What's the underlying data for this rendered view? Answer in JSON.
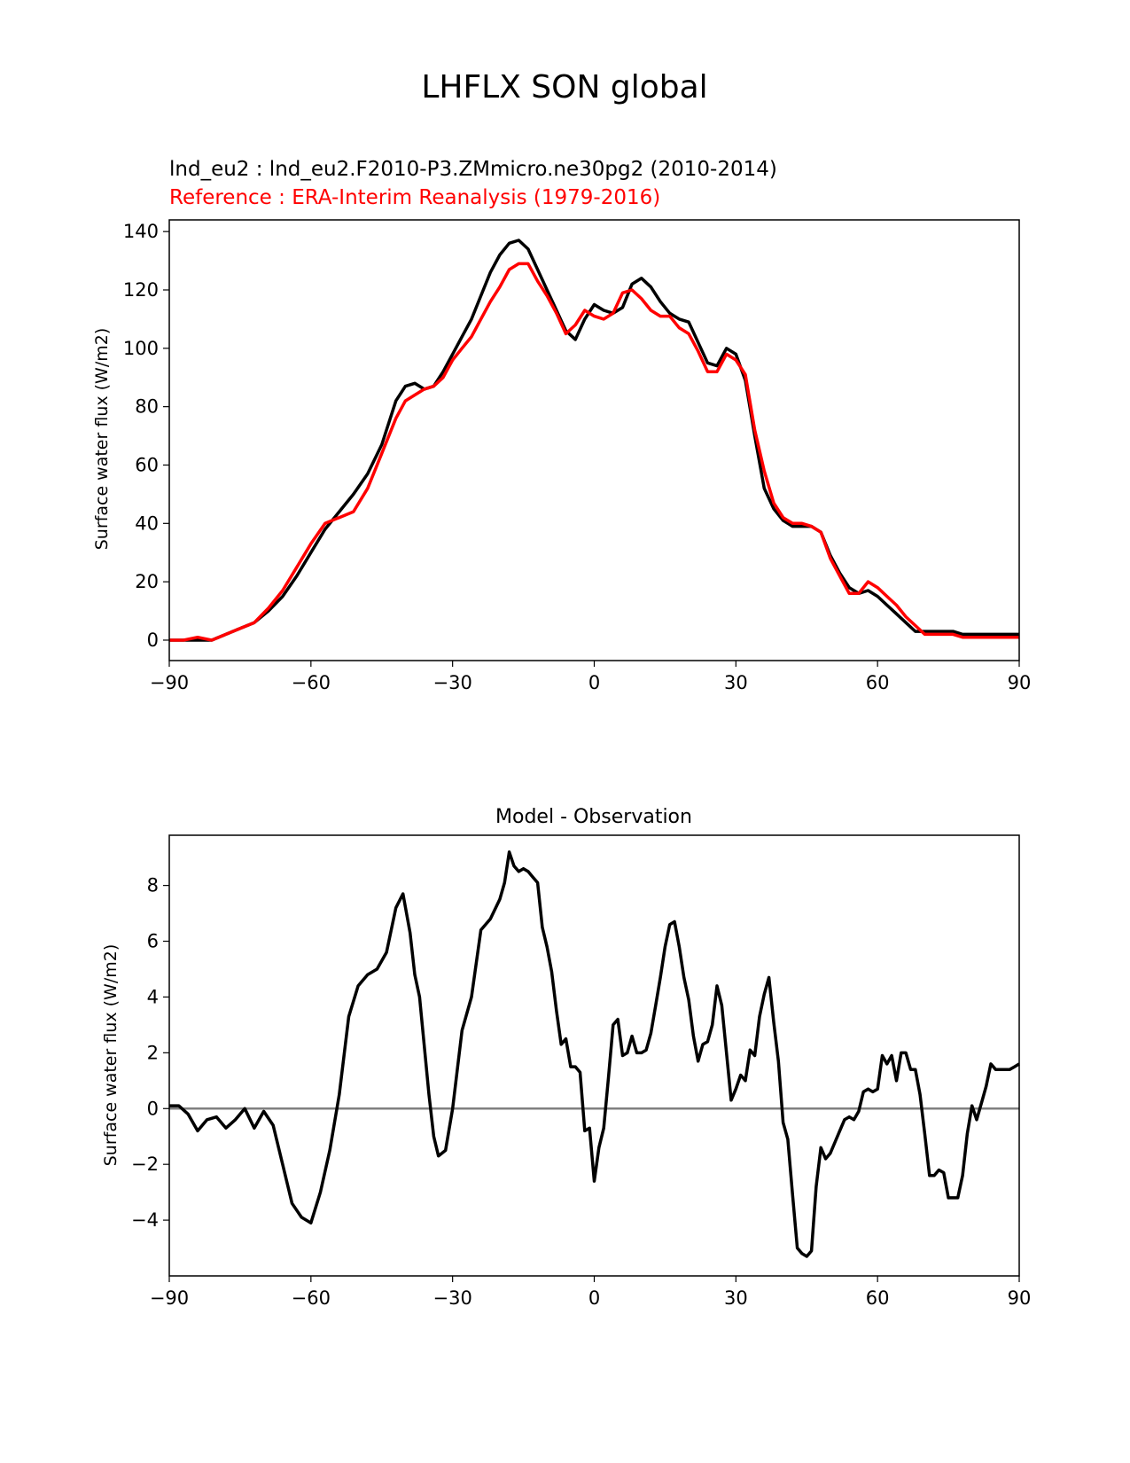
{
  "page_title": "LHFLX SON global",
  "chart_data": [
    {
      "type": "line",
      "test_label": "lnd_eu2 : lnd_eu2.F2010-P3.ZMmicro.ne30pg2 (2010-2014)",
      "ref_label": "Reference : ERA-Interim Reanalysis (1979-2016)",
      "title": "",
      "xlabel": "",
      "ylabel": "Surface water flux (W/m2)",
      "xlim": [
        -90,
        90
      ],
      "ylim": [
        -7,
        144
      ],
      "xticks": [
        -90,
        -60,
        -30,
        0,
        30,
        60,
        90
      ],
      "xtick_labels": [
        "−90",
        "−60",
        "−30",
        "0",
        "30",
        "60",
        "90"
      ],
      "yticks": [
        0,
        20,
        40,
        60,
        80,
        100,
        120,
        140
      ],
      "ytick_labels": [
        "0",
        "20",
        "40",
        "60",
        "80",
        "100",
        "120",
        "140"
      ],
      "series": [
        {
          "name": "test",
          "color": "#000000",
          "x": [
            -90,
            -87,
            -84,
            -81,
            -78,
            -75,
            -72,
            -69,
            -66,
            -63,
            -60,
            -57,
            -54,
            -51,
            -48,
            -45,
            -42,
            -40,
            -38,
            -36,
            -34,
            -32,
            -30,
            -28,
            -26,
            -24,
            -22,
            -20,
            -18,
            -16,
            -14,
            -12,
            -10,
            -8,
            -6,
            -4,
            -2,
            0,
            2,
            4,
            6,
            8,
            10,
            12,
            14,
            16,
            18,
            20,
            22,
            24,
            26,
            28,
            30,
            32,
            34,
            36,
            38,
            40,
            42,
            44,
            46,
            48,
            50,
            52,
            54,
            56,
            58,
            60,
            62,
            64,
            66,
            68,
            70,
            72,
            74,
            76,
            78,
            80,
            82,
            84,
            86,
            88,
            90
          ],
          "y": [
            0,
            0,
            0,
            0,
            2,
            4,
            6,
            10,
            15,
            22,
            30,
            38,
            44,
            50,
            57,
            67,
            82,
            87,
            88,
            86,
            87,
            92,
            98,
            104,
            110,
            118,
            126,
            132,
            136,
            137,
            134,
            127,
            120,
            113,
            106,
            103,
            110,
            115,
            113,
            112,
            114,
            122,
            124,
            121,
            116,
            112,
            110,
            109,
            102,
            95,
            94,
            100,
            98,
            89,
            70,
            52,
            45,
            41,
            39,
            39,
            39,
            37,
            29,
            23,
            18,
            16,
            17,
            15,
            12,
            9,
            6,
            3,
            3,
            3,
            3,
            3,
            2,
            2,
            2,
            2,
            2,
            2,
            2
          ]
        },
        {
          "name": "reference",
          "color": "#ff0000",
          "x": [
            -90,
            -87,
            -84,
            -81,
            -78,
            -75,
            -72,
            -69,
            -66,
            -63,
            -60,
            -57,
            -54,
            -51,
            -48,
            -45,
            -42,
            -40,
            -38,
            -36,
            -34,
            -32,
            -30,
            -28,
            -26,
            -24,
            -22,
            -20,
            -18,
            -16,
            -14,
            -12,
            -10,
            -8,
            -6,
            -4,
            -2,
            0,
            2,
            4,
            6,
            8,
            10,
            12,
            14,
            16,
            18,
            20,
            22,
            24,
            26,
            28,
            30,
            32,
            34,
            36,
            38,
            40,
            42,
            44,
            46,
            48,
            50,
            52,
            54,
            56,
            58,
            60,
            62,
            64,
            66,
            68,
            70,
            72,
            74,
            76,
            78,
            80,
            82,
            84,
            86,
            88,
            90
          ],
          "y": [
            0,
            0,
            1,
            0,
            2,
            4,
            6,
            11,
            17,
            25,
            33,
            40,
            42,
            44,
            52,
            64,
            76,
            82,
            84,
            86,
            87,
            90,
            96,
            100,
            104,
            110,
            116,
            121,
            127,
            129,
            129,
            123,
            118,
            112,
            105,
            108,
            113,
            111,
            110,
            112,
            119,
            120,
            117,
            113,
            111,
            111,
            107,
            105,
            99,
            92,
            92,
            98,
            96,
            91,
            72,
            58,
            47,
            42,
            40,
            40,
            39,
            37,
            28,
            22,
            16,
            16,
            20,
            18,
            15,
            12,
            8,
            5,
            2,
            2,
            2,
            2,
            1,
            1,
            1,
            1,
            1,
            1,
            1
          ]
        }
      ]
    },
    {
      "type": "line",
      "title": "Model - Observation",
      "xlabel": "",
      "ylabel": "Surface water flux (W/m2)",
      "xlim": [
        -90,
        90
      ],
      "ylim": [
        -6,
        9.8
      ],
      "xticks": [
        -90,
        -60,
        -30,
        0,
        30,
        60,
        90
      ],
      "xtick_labels": [
        "−90",
        "−60",
        "−30",
        "0",
        "30",
        "60",
        "90"
      ],
      "yticks": [
        -4,
        -2,
        0,
        2,
        4,
        6,
        8
      ],
      "ytick_labels": [
        "−4",
        "−2",
        "0",
        "2",
        "4",
        "6",
        "8"
      ],
      "zero_line_color": "#808080",
      "series": [
        {
          "name": "difference",
          "color": "#000000",
          "x": [
            -90,
            -88,
            -86,
            -84,
            -82,
            -80,
            -78,
            -76,
            -74,
            -72,
            -70,
            -68,
            -66,
            -64,
            -62,
            -60,
            -58,
            -56,
            -54,
            -52,
            -50,
            -48,
            -46,
            -44,
            -42,
            -40.5,
            -39,
            -38,
            -37,
            -35,
            -34,
            -33,
            -31.5,
            -30,
            -28,
            -26,
            -24,
            -22,
            -20,
            -19,
            -18,
            -17,
            -16,
            -15,
            -14,
            -13,
            -12,
            -11,
            -10,
            -9,
            -8,
            -7,
            -6,
            -5,
            -4,
            -3,
            -2,
            -1,
            0,
            1,
            2,
            3,
            4,
            5,
            6,
            7,
            8,
            9,
            10,
            11,
            12,
            13,
            14,
            15,
            16,
            17,
            18,
            19,
            20,
            21,
            22,
            23,
            24,
            25,
            26,
            27,
            28,
            29,
            30,
            31,
            32,
            33,
            34,
            35,
            36,
            37,
            38,
            39,
            40,
            41,
            42,
            43,
            44,
            45,
            46,
            47,
            48,
            49,
            50,
            51,
            52,
            53,
            54,
            55,
            56,
            57,
            58,
            59,
            60,
            61,
            62,
            63,
            64,
            65,
            66,
            67,
            68,
            69,
            70,
            71,
            72,
            73,
            74,
            75,
            76,
            77,
            78,
            79,
            80,
            81,
            82,
            83,
            84,
            85,
            86,
            87,
            88,
            89,
            90
          ],
          "y": [
            0.1,
            0.1,
            -0.2,
            -0.8,
            -0.4,
            -0.3,
            -0.7,
            -0.4,
            0.0,
            -0.7,
            -0.1,
            -0.6,
            -2.0,
            -3.4,
            -3.9,
            -4.1,
            -3.0,
            -1.5,
            0.5,
            3.3,
            4.4,
            4.8,
            5.0,
            5.6,
            7.2,
            7.7,
            6.3,
            4.8,
            4.0,
            0.5,
            -1.0,
            -1.7,
            -1.5,
            0.0,
            2.8,
            4.0,
            6.4,
            6.8,
            7.5,
            8.1,
            9.2,
            8.7,
            8.5,
            8.6,
            8.5,
            8.3,
            8.1,
            6.5,
            5.8,
            4.9,
            3.5,
            2.3,
            2.5,
            1.5,
            1.5,
            1.3,
            -0.8,
            -0.7,
            -2.6,
            -1.4,
            -0.7,
            1.1,
            3.0,
            3.2,
            1.9,
            2.0,
            2.6,
            2.0,
            2.0,
            2.1,
            2.7,
            3.7,
            4.7,
            5.8,
            6.6,
            6.7,
            5.8,
            4.7,
            3.9,
            2.6,
            1.7,
            2.3,
            2.4,
            3.0,
            4.4,
            3.7,
            2.0,
            0.3,
            0.7,
            1.2,
            1.0,
            2.1,
            1.9,
            3.3,
            4.1,
            4.7,
            3.1,
            1.7,
            -0.5,
            -1.1,
            -3.1,
            -5.0,
            -5.2,
            -5.3,
            -5.1,
            -2.8,
            -1.4,
            -1.8,
            -1.6,
            -1.2,
            -0.8,
            -0.4,
            -0.3,
            -0.4,
            -0.1,
            0.6,
            0.7,
            0.6,
            0.7,
            1.9,
            1.6,
            1.9,
            1.0,
            2.0,
            2.0,
            1.4,
            1.4,
            0.5,
            -0.9,
            -2.4,
            -2.4,
            -2.2,
            -2.3,
            -3.2,
            -3.2,
            -3.2,
            -2.4,
            -0.9,
            0.1,
            -0.4,
            0.2,
            0.8,
            1.6,
            1.4,
            1.4,
            1.4,
            1.4,
            1.5,
            1.6
          ]
        }
      ]
    }
  ]
}
